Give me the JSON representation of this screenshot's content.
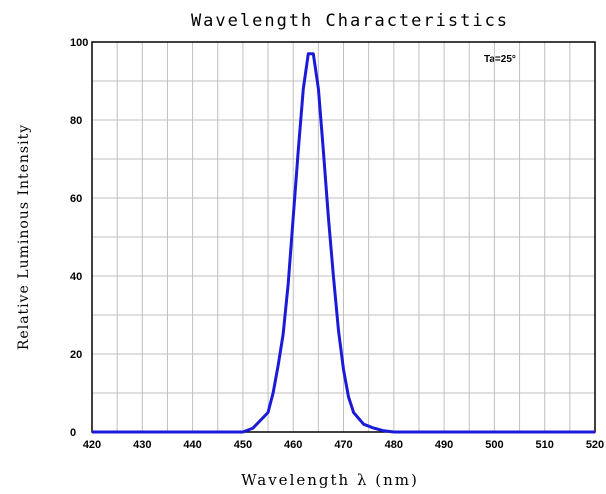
{
  "chart_data": {
    "type": "line",
    "title": "Wavelength Characteristics",
    "xlabel": "Wavelength λ (nm)",
    "ylabel": "Relative Luminous Intensity",
    "annotation": "Ta=25°",
    "xlim": [
      420,
      520
    ],
    "ylim": [
      0,
      100
    ],
    "xticks": [
      420,
      430,
      440,
      450,
      460,
      470,
      480,
      490,
      500,
      510,
      520
    ],
    "yticks": [
      0,
      20,
      40,
      60,
      80,
      100
    ],
    "grid": true,
    "line_color": "#1a1ad8",
    "grid_color": "#c0c0c0",
    "series": [
      {
        "x": [
          420,
          450,
          452,
          455,
          456,
          457,
          458,
          459,
          460,
          461,
          462,
          463,
          464,
          465,
          466,
          467,
          468,
          469,
          470,
          471,
          472,
          474,
          476,
          478,
          480,
          520
        ],
        "y": [
          0,
          0,
          1,
          5,
          10,
          17,
          25,
          38,
          55,
          72,
          88,
          97,
          97,
          88,
          72,
          55,
          40,
          26,
          16,
          9,
          5,
          2,
          1,
          0.3,
          0,
          0
        ]
      }
    ]
  }
}
